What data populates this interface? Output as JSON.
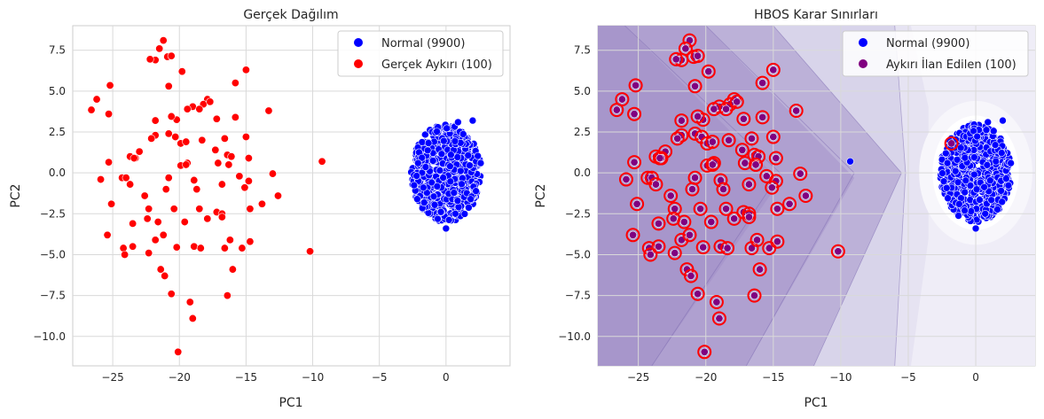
{
  "chart_data": [
    {
      "type": "scatter",
      "title": "Gerçek Dağılım",
      "xlabel": "PC1",
      "ylabel": "PC2",
      "xlim": [
        -28,
        4.8
      ],
      "ylim": [
        -11.8,
        9.0
      ],
      "xticks": [
        -25,
        -20,
        -15,
        -10,
        -5,
        0
      ],
      "yticks": [
        7.5,
        5.0,
        2.5,
        0.0,
        -2.5,
        -5.0,
        -7.5,
        -10.0
      ],
      "xtick_labels": [
        "−25",
        "−20",
        "−15",
        "−10",
        "−5",
        "0"
      ],
      "ytick_labels": [
        "7.5",
        "5.0",
        "2.5",
        "0.0",
        "−2.5",
        "−5.0",
        "−7.5",
        "−10.0"
      ],
      "grid": true,
      "legend_position": "top-right",
      "legend": [
        {
          "label": "Normal (9900)",
          "color": "#0000ff"
        },
        {
          "label": "Gerçek Aykırı (100)",
          "color": "#ff0000"
        }
      ],
      "series": [
        {
          "name": "Normal (9900)",
          "color": "#0000ff",
          "cluster": {
            "center": [
              0,
              0
            ],
            "radius": 2.5
          },
          "points": [
            [
              0.9,
              3.1
            ],
            [
              2.0,
              3.2
            ],
            [
              -2.1,
              0.6
            ],
            [
              0.0,
              -3.4
            ],
            [
              0.7,
              -2.5
            ],
            [
              2.6,
              0.6
            ],
            [
              -1.7,
              -0.9
            ]
          ]
        },
        {
          "name": "Gerçek Aykırı (100)",
          "color": "#ff0000",
          "points": [
            [
              -21.2,
              8.1
            ],
            [
              -21.5,
              7.6
            ],
            [
              -21.8,
              6.9
            ],
            [
              -22.2,
              6.95
            ],
            [
              -20.9,
              7.1
            ],
            [
              -20.6,
              7.15
            ],
            [
              -19.8,
              6.2
            ],
            [
              -15.0,
              6.3
            ],
            [
              -25.2,
              5.35
            ],
            [
              -26.2,
              4.5
            ],
            [
              -15.8,
              5.5
            ],
            [
              -26.6,
              3.85
            ],
            [
              -25.3,
              3.6
            ],
            [
              -20.8,
              5.3
            ],
            [
              -17.9,
              4.5
            ],
            [
              -18.2,
              4.2
            ],
            [
              -17.7,
              4.35
            ],
            [
              -19.0,
              4.05
            ],
            [
              -18.5,
              3.9
            ],
            [
              -19.4,
              3.9
            ],
            [
              -21.8,
              3.2
            ],
            [
              -20.2,
              3.25
            ],
            [
              -20.6,
              3.45
            ],
            [
              -17.2,
              3.3
            ],
            [
              -15.8,
              3.4
            ],
            [
              -13.3,
              3.8
            ],
            [
              -21.8,
              2.3
            ],
            [
              -22.1,
              2.1
            ],
            [
              -20.8,
              2.4
            ],
            [
              -20.3,
              2.2
            ],
            [
              -19.9,
              1.8
            ],
            [
              -19.5,
              1.9
            ],
            [
              -18.3,
              2.0
            ],
            [
              -16.6,
              2.1
            ],
            [
              -15.0,
              2.2
            ],
            [
              -23.0,
              1.3
            ],
            [
              -23.7,
              1.0
            ],
            [
              -23.3,
              0.9
            ],
            [
              -17.3,
              1.4
            ],
            [
              -16.4,
              1.1
            ],
            [
              -16.1,
              1.0
            ],
            [
              -19.9,
              0.45
            ],
            [
              -19.4,
              0.6
            ],
            [
              -17.1,
              0.6
            ],
            [
              -14.8,
              0.9
            ],
            [
              -9.3,
              0.7
            ],
            [
              -25.3,
              0.65
            ],
            [
              -23.4,
              0.9
            ],
            [
              -19.5,
              0.5
            ],
            [
              -16.3,
              0.5
            ],
            [
              -15.5,
              -0.2
            ],
            [
              -24.3,
              -0.3
            ],
            [
              -25.9,
              -0.4
            ],
            [
              -24.0,
              -0.3
            ],
            [
              -20.8,
              -0.3
            ],
            [
              -18.9,
              -0.45
            ],
            [
              -14.8,
              -0.5
            ],
            [
              -16.8,
              -0.7
            ],
            [
              -13.0,
              -0.05
            ],
            [
              -23.7,
              -0.7
            ],
            [
              -22.6,
              -1.4
            ],
            [
              -21.0,
              -1.0
            ],
            [
              -18.7,
              -1.0
            ],
            [
              -15.1,
              -0.9
            ],
            [
              -12.6,
              -1.4
            ],
            [
              -25.1,
              -1.9
            ],
            [
              -22.3,
              -2.2
            ],
            [
              -20.4,
              -2.2
            ],
            [
              -18.5,
              -2.2
            ],
            [
              -17.2,
              -2.4
            ],
            [
              -16.8,
              -2.5
            ],
            [
              -14.7,
              -2.2
            ],
            [
              -13.8,
              -1.9
            ],
            [
              -22.4,
              -2.8
            ],
            [
              -21.6,
              -3.0
            ],
            [
              -23.5,
              -3.1
            ],
            [
              -19.6,
              -3.0
            ],
            [
              -17.9,
              -2.8
            ],
            [
              -16.8,
              -2.7
            ],
            [
              -25.4,
              -3.8
            ],
            [
              -24.2,
              -4.6
            ],
            [
              -21.8,
              -4.1
            ],
            [
              -21.2,
              -3.8
            ],
            [
              -20.2,
              -4.55
            ],
            [
              -18.9,
              -4.5
            ],
            [
              -18.4,
              -4.6
            ],
            [
              -16.6,
              -4.6
            ],
            [
              -15.3,
              -4.6
            ],
            [
              -14.7,
              -4.2
            ],
            [
              -16.2,
              -4.1
            ],
            [
              -23.5,
              -4.5
            ],
            [
              -24.1,
              -5.0
            ],
            [
              -22.3,
              -4.9
            ],
            [
              -21.4,
              -5.9
            ],
            [
              -21.1,
              -6.3
            ],
            [
              -16.0,
              -5.9
            ],
            [
              -10.2,
              -4.8
            ],
            [
              -20.6,
              -7.4
            ],
            [
              -16.4,
              -7.5
            ],
            [
              -19.2,
              -7.9
            ],
            [
              -19.0,
              -8.9
            ],
            [
              -20.1,
              -10.95
            ]
          ]
        }
      ]
    },
    {
      "type": "scatter",
      "title": "HBOS Karar Sınırları",
      "xlabel": "PC1",
      "ylabel": "PC2",
      "xlim": [
        -28,
        4.4
      ],
      "ylim": [
        -11.8,
        9.0
      ],
      "xticks": [
        -25,
        -20,
        -15,
        -10,
        -5,
        0
      ],
      "yticks": [
        7.5,
        5.0,
        2.5,
        0.0,
        -2.5,
        -5.0,
        -7.5,
        -10.0
      ],
      "xtick_labels": [
        "−25",
        "−20",
        "−15",
        "−10",
        "−5",
        "0"
      ],
      "ytick_labels": [
        "7.5",
        "5.0",
        "2.5",
        "0.0",
        "−2.5",
        "−5.0",
        "−7.5",
        "−10.0"
      ],
      "grid": true,
      "legend_position": "top-right",
      "background": "filled contour of HBOS anomaly score (purple)",
      "legend": [
        {
          "label": "Normal (9900)",
          "color": "#0000ff"
        },
        {
          "label": "Aykırı İlan Edilen (100)",
          "color": "#800080"
        }
      ],
      "series": [
        {
          "name": "Normal (9900)",
          "color": "#0000ff",
          "cluster": {
            "center": [
              0,
              0
            ],
            "radius": 2.5
          },
          "points": [
            [
              0.9,
              3.1
            ],
            [
              2.0,
              3.2
            ],
            [
              -2.1,
              0.6
            ],
            [
              0.0,
              -3.4
            ],
            [
              0.7,
              -2.5
            ],
            [
              2.6,
              0.6
            ],
            [
              -9.3,
              0.7
            ]
          ]
        },
        {
          "name": "Aykırı İlan Edilen (100)",
          "color": "#800080",
          "marker": "red ring",
          "note": "flagged points correspond to the outlier points of the first panel (excluding one at -9.3, 0.7) plus one at -1.8, 1.8"
        }
      ]
    }
  ]
}
